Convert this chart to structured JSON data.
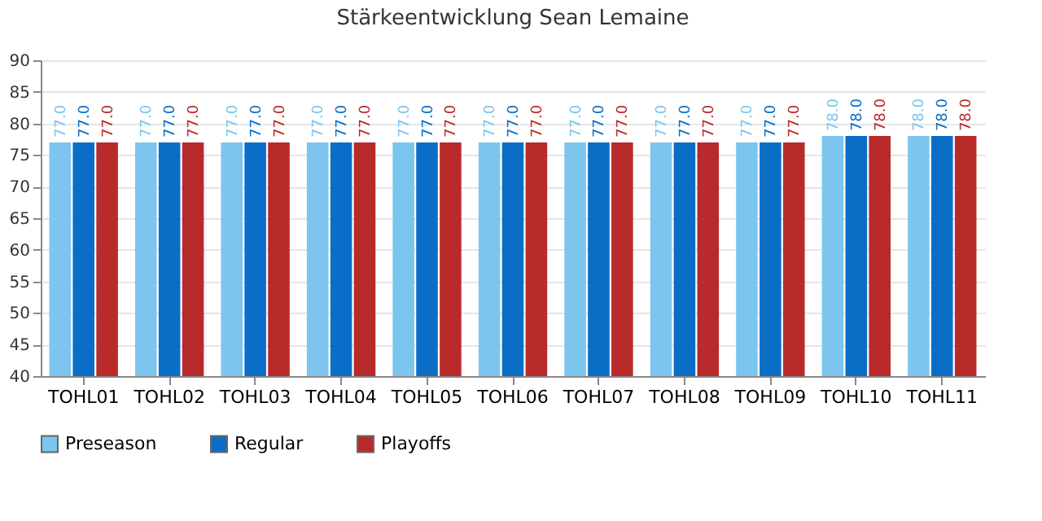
{
  "chart_data": {
    "type": "bar",
    "title": "Stärkeentwicklung Sean Lemaine",
    "categories": [
      "TOHL01",
      "TOHL02",
      "TOHL03",
      "TOHL04",
      "TOHL05",
      "TOHL06",
      "TOHL07",
      "TOHL08",
      "TOHL09",
      "TOHL10",
      "TOHL11"
    ],
    "series": [
      {
        "name": "Preseason",
        "color": "#7cc5ef",
        "values": [
          77,
          77,
          77,
          77,
          77,
          77,
          77,
          77,
          77,
          78,
          78
        ],
        "value_labels": [
          "77.0",
          "77.0",
          "77.0",
          "77.0",
          "77.0",
          "77.0",
          "77.0",
          "77.0",
          "77.0",
          "78.0",
          "78.0"
        ]
      },
      {
        "name": "Regular",
        "color": "#0a6ec6",
        "values": [
          77,
          77,
          77,
          77,
          77,
          77,
          77,
          77,
          77,
          78,
          78
        ],
        "value_labels": [
          "77.0",
          "77.0",
          "77.0",
          "77.0",
          "77.0",
          "77.0",
          "77.0",
          "77.0",
          "77.0",
          "78.0",
          "78.0"
        ]
      },
      {
        "name": "Playoffs",
        "color": "#b92a2a",
        "values": [
          77,
          77,
          77,
          77,
          77,
          77,
          77,
          77,
          77,
          78,
          78
        ],
        "value_labels": [
          "77.0",
          "77.0",
          "77.0",
          "77.0",
          "77.0",
          "77.0",
          "77.0",
          "77.0",
          "77.0",
          "78.0",
          "78.0"
        ]
      }
    ],
    "ylim": [
      40,
      90
    ],
    "yticks": [
      40,
      45,
      50,
      55,
      60,
      65,
      70,
      75,
      80,
      85,
      90
    ],
    "grid": "y",
    "legend": "bottom"
  }
}
